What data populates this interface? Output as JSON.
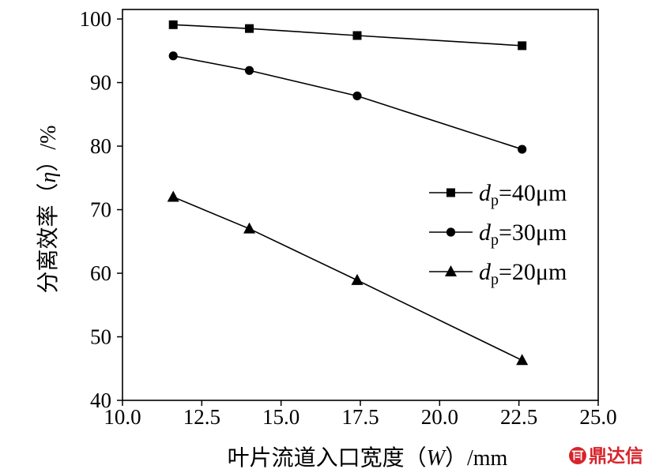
{
  "chart_data": {
    "type": "line",
    "xlabel": "叶片流道入口宽度（W）/mm",
    "ylabel": "分离效率（η）/%",
    "xlim": [
      10.0,
      25.0
    ],
    "ylim": [
      40,
      101.5
    ],
    "xticks": [
      "10.0",
      "12.5",
      "15.0",
      "17.5",
      "20.0",
      "22.5",
      "25.0"
    ],
    "yticks": [
      "40",
      "50",
      "60",
      "70",
      "80",
      "90",
      "100"
    ],
    "x": [
      11.6,
      14.0,
      17.4,
      22.6
    ],
    "series": [
      {
        "name": "dp=40μm",
        "marker": "square",
        "values": [
          99.1,
          98.5,
          97.4,
          95.8
        ]
      },
      {
        "name": "dp=30μm",
        "marker": "circle",
        "values": [
          94.2,
          91.9,
          87.9,
          79.5
        ]
      },
      {
        "name": "dp=20μm",
        "marker": "triangle",
        "values": [
          72.0,
          67.0,
          58.9,
          46.3
        ]
      }
    ],
    "color": "#000000",
    "grid": false,
    "legend": "center-right"
  },
  "watermark": {
    "text": "鼎达信",
    "color": "#d7242c",
    "icon": "watermark-logo-icon"
  }
}
